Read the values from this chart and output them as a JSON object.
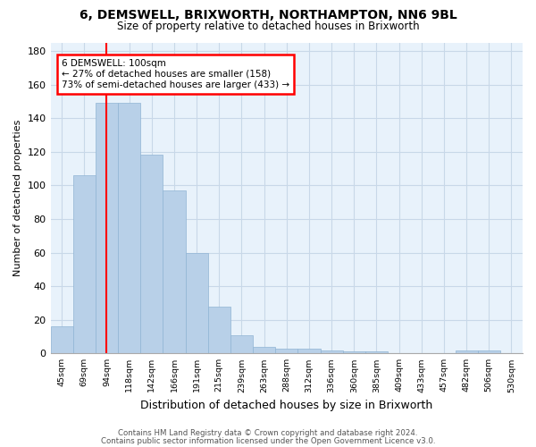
{
  "title": "6, DEMSWELL, BRIXWORTH, NORTHAMPTON, NN6 9BL",
  "subtitle": "Size of property relative to detached houses in Brixworth",
  "xlabel": "Distribution of detached houses by size in Brixworth",
  "ylabel": "Number of detached properties",
  "bar_color": "#b8d0e8",
  "bar_edge_color": "#90b4d4",
  "grid_color": "#c8d8e8",
  "background_color": "#e8f2fb",
  "bins": [
    "45sqm",
    "69sqm",
    "94sqm",
    "118sqm",
    "142sqm",
    "166sqm",
    "191sqm",
    "215sqm",
    "239sqm",
    "263sqm",
    "288sqm",
    "312sqm",
    "336sqm",
    "360sqm",
    "385sqm",
    "409sqm",
    "433sqm",
    "457sqm",
    "482sqm",
    "506sqm",
    "530sqm"
  ],
  "values": [
    16,
    106,
    149,
    149,
    118,
    97,
    60,
    28,
    11,
    4,
    3,
    3,
    2,
    1,
    1,
    0,
    0,
    0,
    2,
    2,
    0
  ],
  "ylim": [
    0,
    185
  ],
  "yticks": [
    0,
    20,
    40,
    60,
    80,
    100,
    120,
    140,
    160,
    180
  ],
  "property_line_x": 2.5,
  "annotation_title": "6 DEMSWELL: 100sqm",
  "annotation_line1": "← 27% of detached houses are smaller (158)",
  "annotation_line2": "73% of semi-detached houses are larger (433) →",
  "annotation_box_color": "white",
  "annotation_box_edge": "red",
  "property_line_color": "red",
  "footer_line1": "Contains HM Land Registry data © Crown copyright and database right 2024.",
  "footer_line2": "Contains public sector information licensed under the Open Government Licence v3.0."
}
